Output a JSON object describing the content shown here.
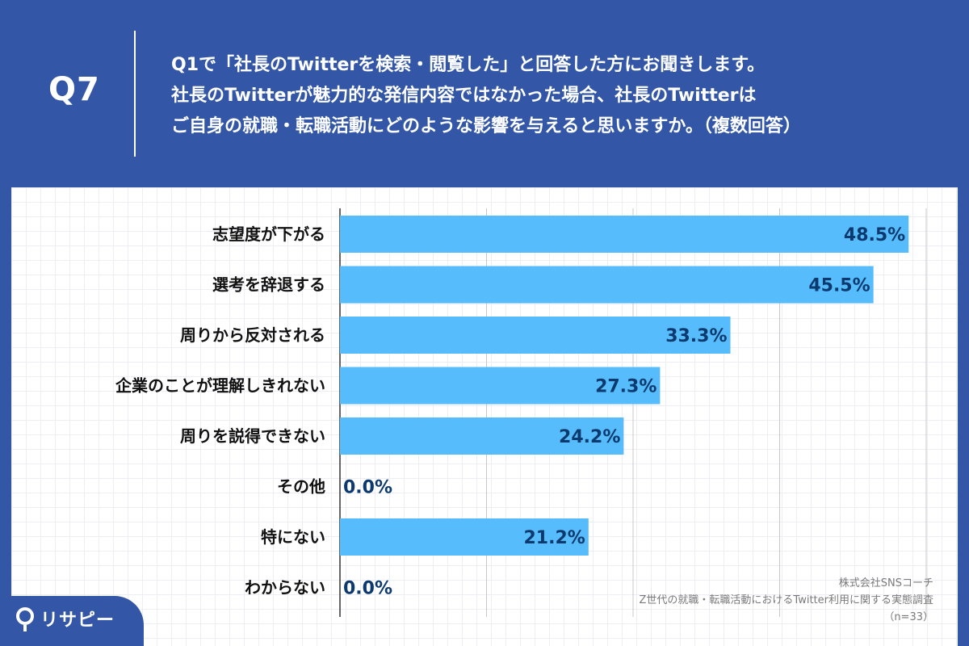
{
  "header": {
    "q_label": "Q7",
    "question_lines": [
      "Q1で「社長のTwitterを検索・閲覧した」と回答した方にお聞きします。",
      "社長のTwitterが魅力的な発信内容ではなかった場合、社長のTwitterは",
      "ご自身の就職・転職活動にどのような影響を与えると思いますか。（複数回答）"
    ]
  },
  "colors": {
    "background": "#3357a6",
    "bar": "#56bcfb",
    "value_text": "#0d3a6e",
    "gridline": "#c8c8c8"
  },
  "chart_data": {
    "type": "bar",
    "orientation": "horizontal",
    "categories": [
      "志望度が下がる",
      "選考を辞退する",
      "周りから反対される",
      "企業のことが理解しきれない",
      "周りを説得できない",
      "その他",
      "特にない",
      "わからない"
    ],
    "values": [
      48.5,
      45.5,
      33.3,
      27.3,
      24.2,
      0.0,
      21.2,
      0.0
    ],
    "value_labels": [
      "48.5%",
      "45.5%",
      "33.3%",
      "27.3%",
      "24.2%",
      "0.0%",
      "21.2%",
      "0.0%"
    ],
    "xlim": [
      0,
      50
    ],
    "x_gridlines": [
      0,
      12.5,
      25,
      37.5,
      50
    ],
    "grid": true,
    "legend": "none"
  },
  "notes": {
    "company": "株式会社SNSコーチ",
    "survey": "Z世代の就職・転職活動におけるTwitter利用に関する実態調査",
    "sample": "（n=33）"
  },
  "logo": {
    "text": "リサピー",
    "icon": "location-pin-icon"
  }
}
